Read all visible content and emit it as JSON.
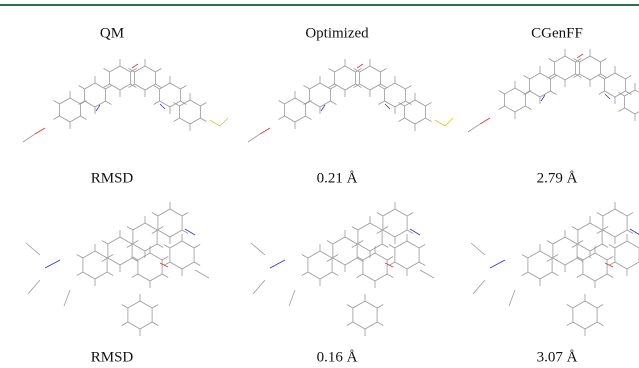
{
  "header": {
    "columns": [
      "QM",
      "Optimized",
      "CGenFF"
    ]
  },
  "rows": [
    {
      "labels": [
        "RMSD",
        "0.21 Å",
        "2.79 Å"
      ]
    },
    {
      "labels": [
        "RMSD",
        "0.16 Å",
        "3.07 Å"
      ]
    }
  ]
}
